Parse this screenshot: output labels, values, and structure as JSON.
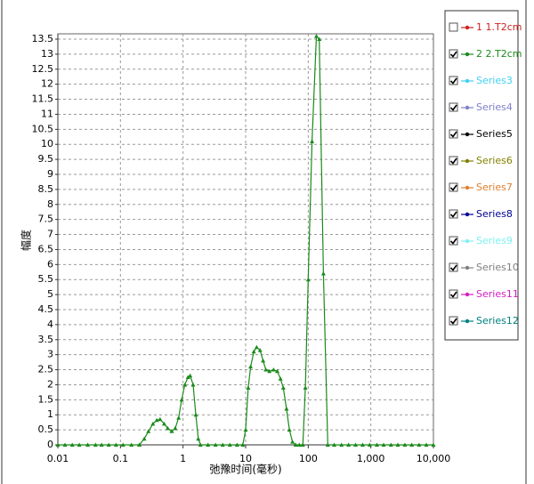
{
  "chart_data": {
    "type": "line",
    "xlabel": "弛豫时间(毫秒)",
    "ylabel": "幅度",
    "xscale": "log",
    "xlim": [
      0.01,
      10000
    ],
    "xticks": [
      0.01,
      0.1,
      1,
      10,
      100,
      {
        "value": 1000,
        "label": "1,000"
      },
      {
        "value": 10000,
        "label": "10,000"
      }
    ],
    "ylim": [
      0,
      13.5
    ],
    "yticks": [
      0,
      0.5,
      1,
      1.5,
      2,
      2.5,
      3,
      3.5,
      4,
      4.5,
      5,
      5.5,
      6,
      6.5,
      7,
      7.5,
      8,
      8.5,
      9,
      9.5,
      10,
      10.5,
      11,
      11.5,
      12,
      12.5,
      13,
      13.5
    ],
    "grid": true,
    "legend": "right",
    "x": [
      0.01,
      0.013,
      0.017,
      0.022,
      0.03,
      0.04,
      0.05,
      0.065,
      0.085,
      0.11,
      0.15,
      0.2,
      0.24,
      0.28,
      0.33,
      0.38,
      0.43,
      0.5,
      0.57,
      0.66,
      0.75,
      0.85,
      0.95,
      1.07,
      1.2,
      1.3,
      1.45,
      1.6,
      1.75,
      1.9,
      2.5,
      3.3,
      4.3,
      5.6,
      7.3,
      9,
      10,
      11,
      12,
      13.5,
      15,
      17,
      19,
      21,
      24,
      28,
      32,
      36,
      40,
      45,
      50,
      56,
      63,
      72,
      82,
      90,
      100,
      115,
      135,
      150,
      175,
      205,
      260,
      340,
      440,
      570,
      740,
      960,
      1250,
      1600,
      2100,
      2700,
      3500,
      4500,
      5900,
      7700,
      10000
    ],
    "series": [
      {
        "name": "1 1.T2cm",
        "color": "#d02020",
        "checked": false
      },
      {
        "name": "2 2.T2cm",
        "color": "#1a8a1a",
        "checked": true,
        "values": [
          0,
          0,
          0,
          0,
          0,
          0,
          0,
          0,
          0,
          0,
          0,
          0,
          0.2,
          0.45,
          0.7,
          0.82,
          0.85,
          0.7,
          0.55,
          0.45,
          0.55,
          0.9,
          1.5,
          2.0,
          2.25,
          2.3,
          2.0,
          1.0,
          0.2,
          0,
          0,
          0,
          0,
          0,
          0,
          0,
          0.5,
          1.9,
          2.6,
          3.1,
          3.25,
          3.15,
          2.8,
          2.5,
          2.45,
          2.5,
          2.45,
          2.2,
          1.9,
          1.2,
          0.5,
          0.1,
          0,
          0,
          0,
          1.9,
          5.5,
          10.1,
          13.6,
          13.5,
          5.7,
          0,
          0,
          0,
          0,
          0,
          0,
          0,
          0,
          0,
          0,
          0,
          0,
          0,
          0,
          0,
          0
        ]
      },
      {
        "name": "Series3",
        "color": "#40d0f0",
        "checked": true
      },
      {
        "name": "Series4",
        "color": "#8080c8",
        "checked": true
      },
      {
        "name": "Series5",
        "color": "#000000",
        "checked": true
      },
      {
        "name": "Series6",
        "color": "#808000",
        "checked": true
      },
      {
        "name": "Series7",
        "color": "#e08030",
        "checked": true
      },
      {
        "name": "Series8",
        "color": "#000090",
        "checked": true
      },
      {
        "name": "Series9",
        "color": "#80f0f0",
        "checked": true
      },
      {
        "name": "Series10",
        "color": "#808080",
        "checked": true
      },
      {
        "name": "Series11",
        "color": "#d020c0",
        "checked": true
      },
      {
        "name": "Series12",
        "color": "#008080",
        "checked": true
      }
    ]
  }
}
